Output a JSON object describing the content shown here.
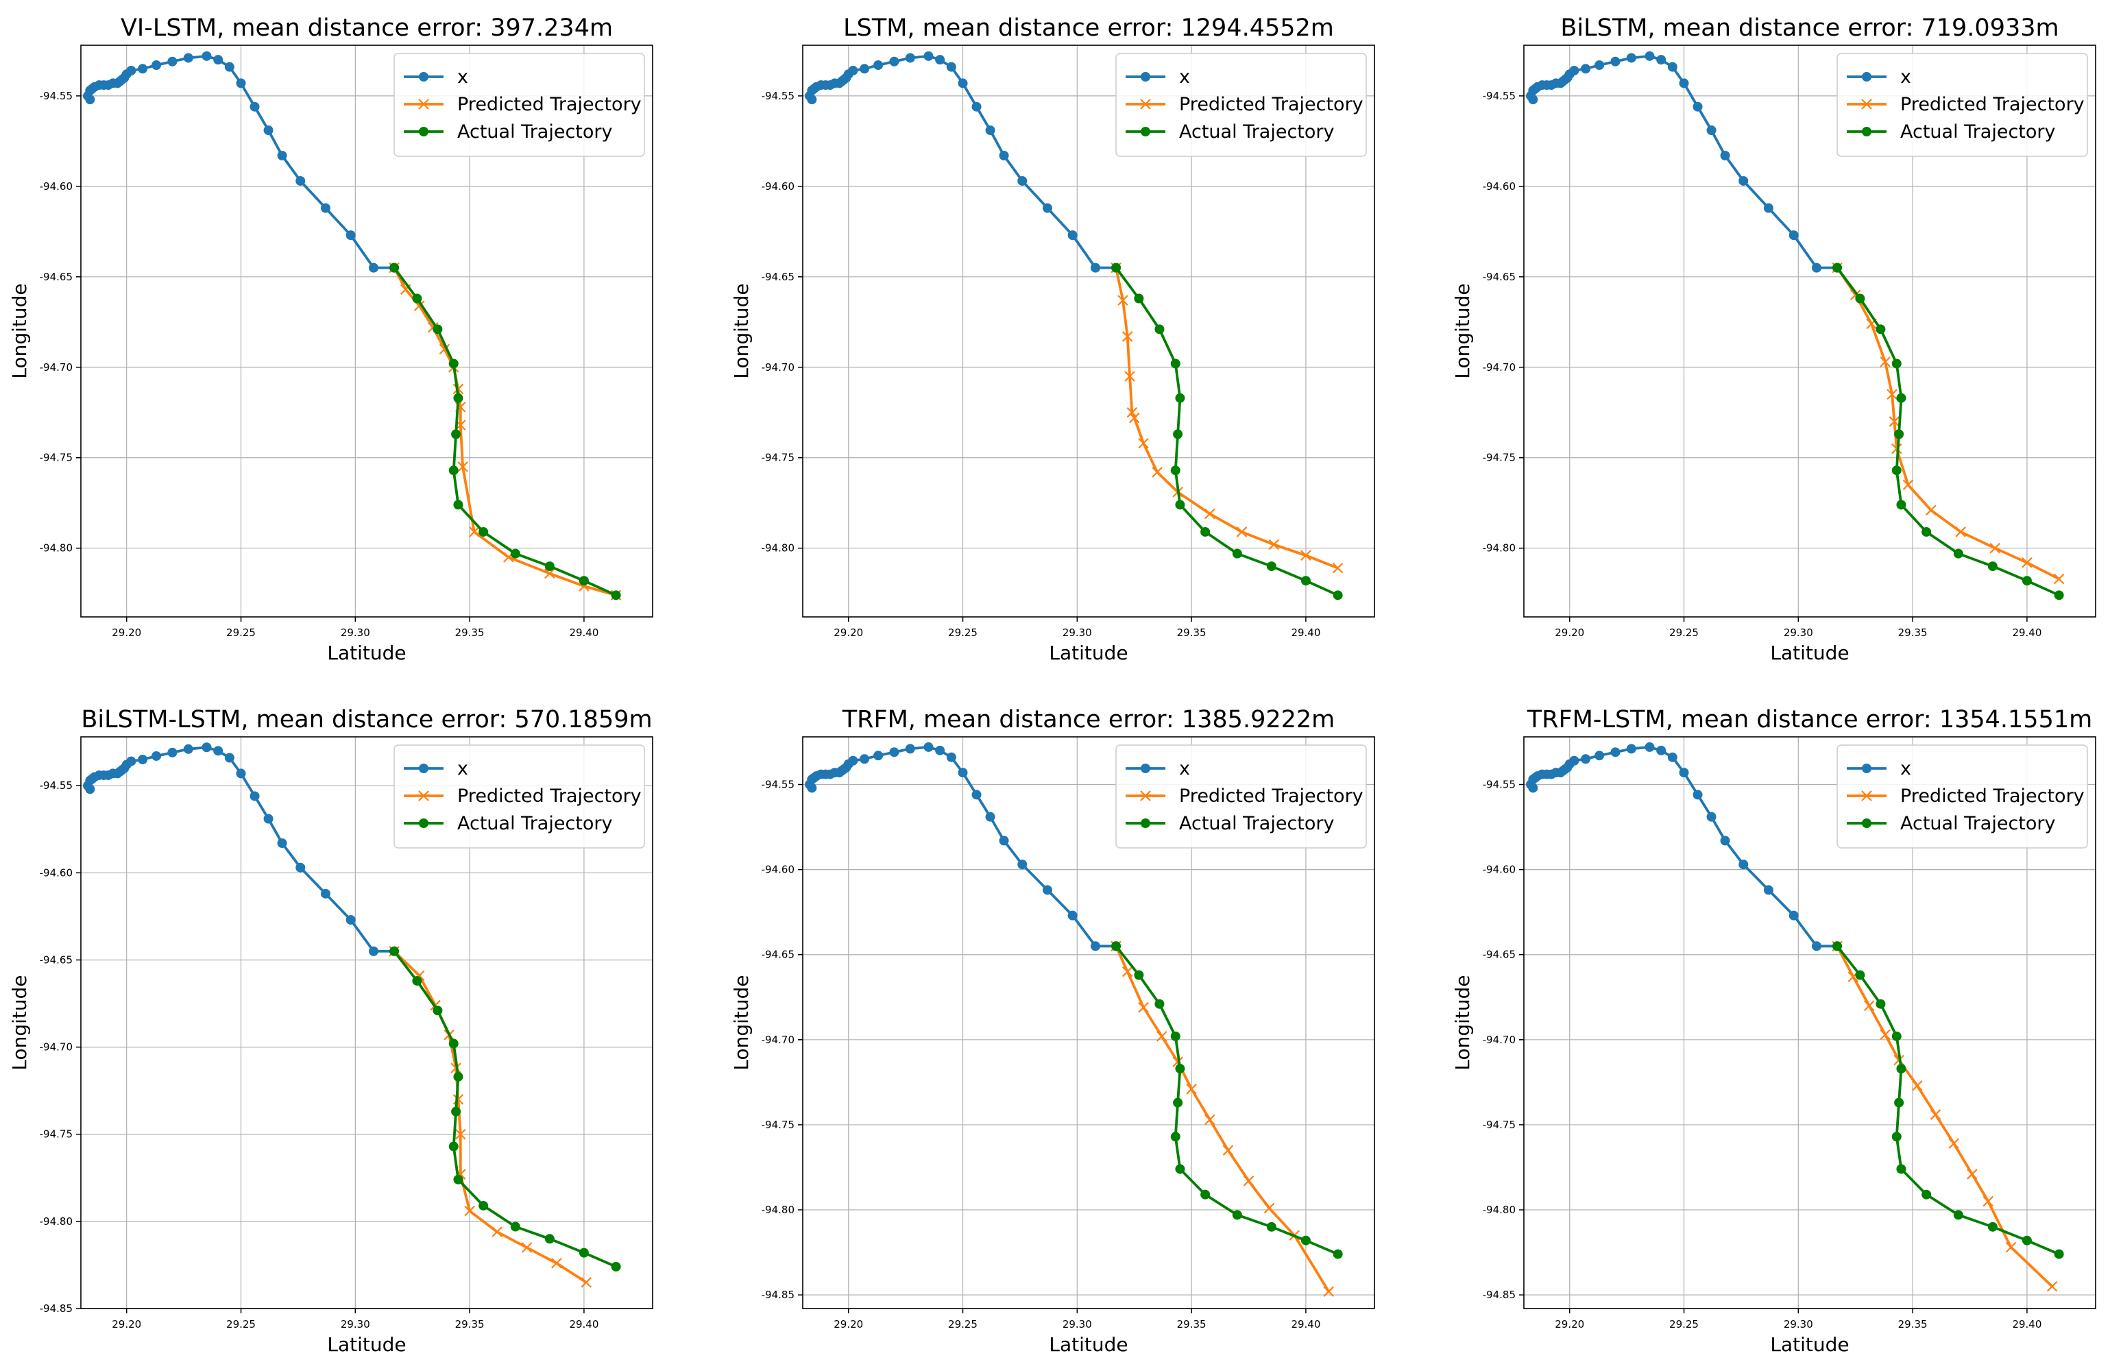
{
  "figure": {
    "legend_x": "x",
    "legend_pred": "Predicted Trajectory",
    "legend_actual": "Actual Trajectory"
  },
  "colors": {
    "history": "#1f77b4",
    "predicted": "#ff7f0e",
    "actual": "#008000",
    "grid": "#b0b0b0",
    "axis": "#000000"
  },
  "common": {
    "history_x": [
      29.184,
      29.183,
      29.184,
      29.185,
      29.186,
      29.188,
      29.19,
      29.192,
      29.194,
      29.196,
      29.197,
      29.198,
      29.199,
      29.2,
      29.202,
      29.207,
      29.213,
      29.22,
      29.227,
      29.235,
      29.24,
      29.245,
      29.25,
      29.256,
      29.262,
      29.268,
      29.276,
      29.287,
      29.298,
      29.308,
      29.317
    ],
    "history_y": [
      -94.552,
      -94.55,
      -94.547,
      -94.546,
      -94.545,
      -94.544,
      -94.544,
      -94.544,
      -94.543,
      -94.543,
      -94.542,
      -94.541,
      -94.54,
      -94.538,
      -94.536,
      -94.535,
      -94.533,
      -94.531,
      -94.529,
      -94.528,
      -94.53,
      -94.534,
      -94.543,
      -94.556,
      -94.569,
      -94.583,
      -94.597,
      -94.612,
      -94.627,
      -94.645,
      -94.645
    ],
    "actual_x": [
      29.317,
      29.327,
      29.336,
      29.343,
      29.345,
      29.344,
      29.343,
      29.345,
      29.356,
      29.37,
      29.385,
      29.4,
      29.414
    ],
    "actual_y": [
      -94.645,
      -94.662,
      -94.679,
      -94.698,
      -94.717,
      -94.737,
      -94.757,
      -94.776,
      -94.791,
      -94.803,
      -94.81,
      -94.818,
      -94.826
    ]
  },
  "chart_data": [
    {
      "type": "line",
      "title": "VI-LSTM, mean distance error: 397.234m",
      "xlabel": "Latitude",
      "ylabel": "Longitude",
      "xlim": [
        29.18,
        29.43
      ],
      "ylim": [
        -94.838,
        -94.522
      ],
      "xticks": [
        "29.20",
        "29.25",
        "29.30",
        "29.35",
        "29.40"
      ],
      "yticks": [
        "-94.55",
        "-94.60",
        "-94.65",
        "-94.70",
        "-94.75",
        "-94.80"
      ],
      "series": [
        {
          "name": "Predicted Trajectory",
          "x": [
            29.317,
            29.322,
            29.328,
            29.334,
            29.339,
            29.343,
            29.345,
            29.346,
            29.346,
            29.347,
            29.352,
            29.367,
            29.385,
            29.4,
            29.414
          ],
          "y": [
            -94.645,
            -94.657,
            -94.666,
            -94.678,
            -94.69,
            -94.7,
            -94.712,
            -94.722,
            -94.732,
            -94.755,
            -94.791,
            -94.805,
            -94.814,
            -94.821,
            -94.826
          ]
        }
      ]
    },
    {
      "type": "line",
      "title": "LSTM, mean distance error: 1294.4552m",
      "xlabel": "Latitude",
      "ylabel": "Longitude",
      "xlim": [
        29.18,
        29.43
      ],
      "ylim": [
        -94.838,
        -94.522
      ],
      "xticks": [
        "29.20",
        "29.25",
        "29.30",
        "29.35",
        "29.40"
      ],
      "yticks": [
        "-94.55",
        "-94.60",
        "-94.65",
        "-94.70",
        "-94.75",
        "-94.80"
      ],
      "series": [
        {
          "name": "Predicted Trajectory",
          "x": [
            29.317,
            29.32,
            29.322,
            29.323,
            29.324,
            29.325,
            29.329,
            29.335,
            29.344,
            29.358,
            29.372,
            29.386,
            29.4,
            29.414
          ],
          "y": [
            -94.645,
            -94.663,
            -94.683,
            -94.705,
            -94.725,
            -94.728,
            -94.742,
            -94.758,
            -94.769,
            -94.781,
            -94.791,
            -94.798,
            -94.804,
            -94.811
          ]
        }
      ]
    },
    {
      "type": "line",
      "title": "BiLSTM, mean distance error: 719.0933m",
      "xlabel": "Latitude",
      "ylabel": "Longitude",
      "xlim": [
        29.18,
        29.43
      ],
      "ylim": [
        -94.838,
        -94.522
      ],
      "xticks": [
        "29.20",
        "29.25",
        "29.30",
        "29.35",
        "29.40"
      ],
      "yticks": [
        "-94.55",
        "-94.60",
        "-94.65",
        "-94.70",
        "-94.75",
        "-94.80"
      ],
      "series": [
        {
          "name": "Predicted Trajectory",
          "x": [
            29.317,
            29.325,
            29.332,
            29.338,
            29.341,
            29.342,
            29.343,
            29.348,
            29.358,
            29.371,
            29.386,
            29.4,
            29.414
          ],
          "y": [
            -94.645,
            -94.66,
            -94.676,
            -94.697,
            -94.715,
            -94.73,
            -94.745,
            -94.765,
            -94.779,
            -94.791,
            -94.8,
            -94.808,
            -94.817
          ]
        }
      ]
    },
    {
      "type": "line",
      "title": "BiLSTM-LSTM, mean distance error: 570.1859m",
      "xlabel": "Latitude",
      "ylabel": "Longitude",
      "xlim": [
        29.18,
        29.43
      ],
      "ylim": [
        -94.85,
        -94.522
      ],
      "xticks": [
        "29.20",
        "29.25",
        "29.30",
        "29.35",
        "29.40"
      ],
      "yticks": [
        "-94.55",
        "-94.60",
        "-94.65",
        "-94.70",
        "-94.75",
        "-94.80",
        "-94.85"
      ],
      "series": [
        {
          "name": "Predicted Trajectory",
          "x": [
            29.317,
            29.328,
            29.335,
            29.341,
            29.344,
            29.345,
            29.346,
            29.346,
            29.35,
            29.362,
            29.375,
            29.388,
            29.401
          ],
          "y": [
            -94.645,
            -94.659,
            -94.676,
            -94.693,
            -94.712,
            -94.73,
            -94.75,
            -94.773,
            -94.794,
            -94.806,
            -94.815,
            -94.824,
            -94.835
          ]
        }
      ]
    },
    {
      "type": "line",
      "title": "TRFM, mean distance error: 1385.9222m",
      "xlabel": "Latitude",
      "ylabel": "Longitude",
      "xlim": [
        29.18,
        29.43
      ],
      "ylim": [
        -94.858,
        -94.522
      ],
      "xticks": [
        "29.20",
        "29.25",
        "29.30",
        "29.35",
        "29.40"
      ],
      "yticks": [
        "-94.55",
        "-94.60",
        "-94.65",
        "-94.70",
        "-94.75",
        "-94.80",
        "-94.85"
      ],
      "series": [
        {
          "name": "Predicted Trajectory",
          "x": [
            29.317,
            29.322,
            29.329,
            29.337,
            29.344,
            29.35,
            29.358,
            29.366,
            29.375,
            29.384,
            29.395,
            29.41
          ],
          "y": [
            -94.645,
            -94.66,
            -94.681,
            -94.698,
            -94.713,
            -94.729,
            -94.747,
            -94.765,
            -94.783,
            -94.799,
            -94.815,
            -94.848
          ]
        }
      ]
    },
    {
      "type": "line",
      "title": "TRFM-LSTM, mean distance error: 1354.1551m",
      "xlabel": "Latitude",
      "ylabel": "Longitude",
      "xlim": [
        29.18,
        29.43
      ],
      "ylim": [
        -94.858,
        -94.522
      ],
      "xticks": [
        "29.20",
        "29.25",
        "29.30",
        "29.35",
        "29.40"
      ],
      "yticks": [
        "-94.55",
        "-94.60",
        "-94.65",
        "-94.70",
        "-94.75",
        "-94.80",
        "-94.85"
      ],
      "series": [
        {
          "name": "Predicted Trajectory",
          "x": [
            29.317,
            29.324,
            29.331,
            29.338,
            29.344,
            29.352,
            29.36,
            29.368,
            29.376,
            29.383,
            29.393,
            29.411
          ],
          "y": [
            -94.645,
            -94.663,
            -94.68,
            -94.697,
            -94.712,
            -94.727,
            -94.744,
            -94.761,
            -94.779,
            -94.795,
            -94.822,
            -94.845
          ]
        }
      ]
    }
  ]
}
